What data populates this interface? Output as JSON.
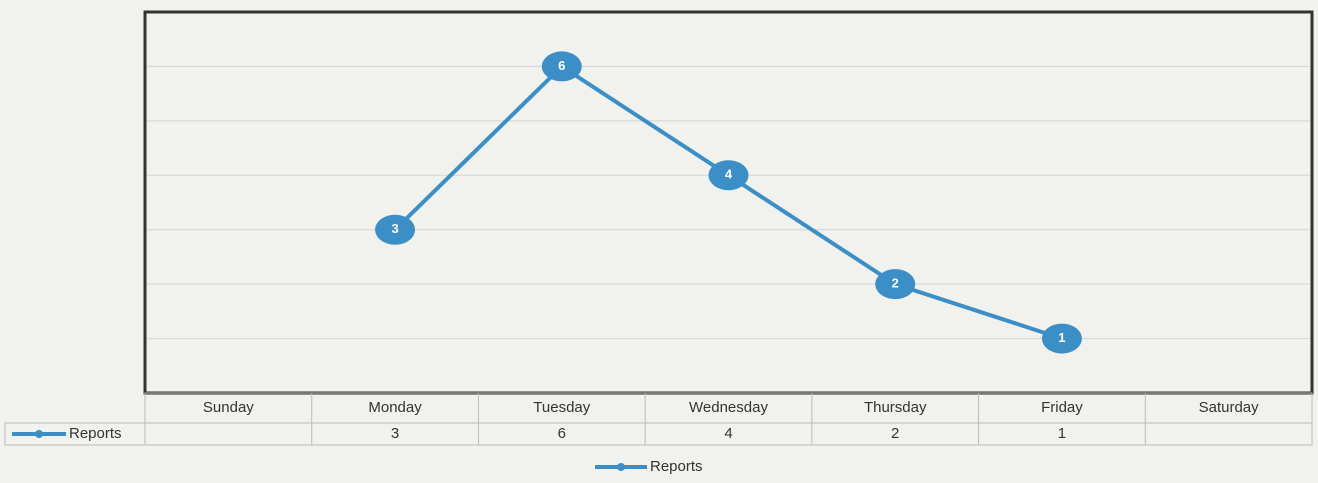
{
  "chart_data": {
    "type": "line",
    "categories": [
      "Sunday",
      "Monday",
      "Tuesday",
      "Wednesday",
      "Thursday",
      "Friday",
      "Saturday"
    ],
    "series": [
      {
        "name": "Reports",
        "color": "#3b8fc6",
        "values": [
          null,
          3,
          6,
          4,
          2,
          1,
          null
        ]
      }
    ],
    "ylim": [
      0,
      7
    ],
    "yticks": [
      0,
      1,
      2,
      3,
      4,
      5,
      6,
      7
    ],
    "grid": true,
    "legend": "bottom",
    "data_table": true
  }
}
